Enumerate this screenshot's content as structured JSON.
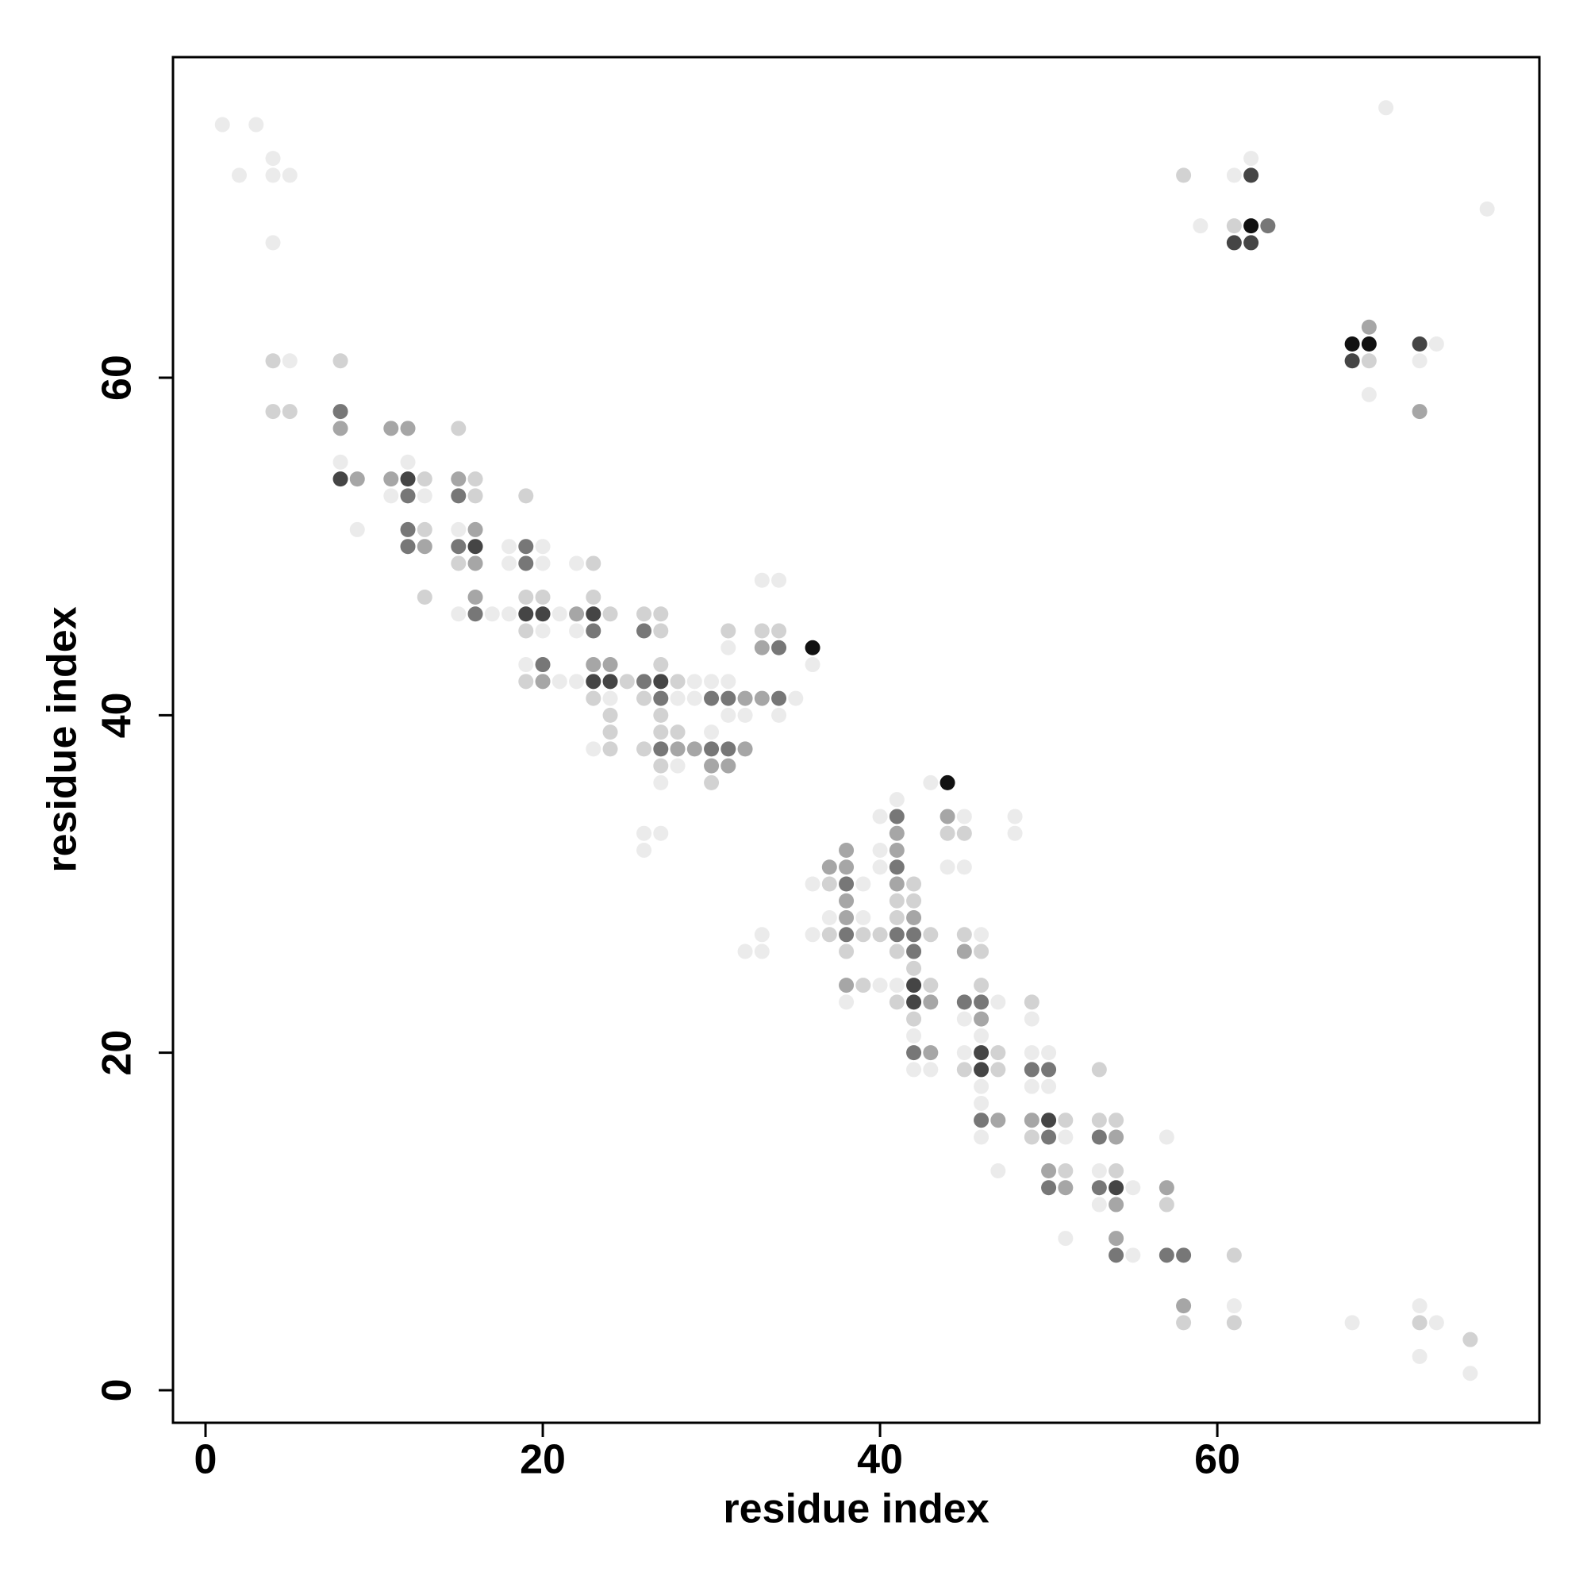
{
  "chart_data": {
    "type": "scatter",
    "x_label": "residue index",
    "y_label": "residue index",
    "xlim": [
      -1.93,
      79.1
    ],
    "ylim": [
      -1.93,
      79.0
    ],
    "xticks": [
      0,
      20,
      40,
      60
    ],
    "yticks": [
      0,
      20,
      40,
      60
    ],
    "grid": false,
    "series": [
      {
        "color": "#ebebeb",
        "x": [
          1,
          3,
          2,
          4,
          4,
          5,
          4,
          5,
          8,
          9,
          11,
          13,
          12,
          15,
          15,
          17,
          18,
          20,
          18,
          20,
          18,
          21,
          20,
          19,
          21,
          22,
          22,
          22,
          24,
          23,
          28,
          28,
          27,
          26,
          27,
          26,
          29,
          30,
          31,
          29,
          35,
          31,
          32,
          34,
          30,
          31,
          33,
          34,
          36,
          32,
          33,
          33,
          43,
          41,
          40,
          45,
          48,
          48,
          40,
          40,
          44,
          45,
          36,
          39,
          37,
          39,
          36,
          46,
          40,
          41,
          38,
          42,
          42,
          43,
          47,
          45,
          46,
          45,
          46,
          46,
          46,
          47,
          49,
          49,
          50,
          49,
          50,
          51,
          51,
          53,
          55,
          53,
          55,
          57,
          61,
          68,
          72,
          73,
          72,
          75,
          70,
          61,
          62,
          59,
          76,
          69,
          73,
          72
        ],
        "values": [
          75,
          75,
          72,
          73,
          72,
          72,
          68,
          61,
          55,
          51,
          53,
          53,
          55,
          51,
          46,
          46,
          50,
          50,
          49,
          49,
          46,
          46,
          45,
          43,
          42,
          49,
          45,
          42,
          41,
          38,
          41,
          37,
          36,
          33,
          33,
          32,
          42,
          42,
          42,
          41,
          41,
          40,
          40,
          40,
          39,
          44,
          48,
          48,
          43,
          26,
          26,
          27,
          36,
          35,
          34,
          34,
          34,
          33,
          32,
          31,
          31,
          31,
          30,
          30,
          28,
          28,
          27,
          27,
          24,
          24,
          23,
          21,
          19,
          19,
          23,
          22,
          21,
          20,
          18,
          17,
          15,
          13,
          22,
          20,
          20,
          18,
          18,
          15,
          9,
          13,
          12,
          11,
          8,
          15,
          5,
          4,
          5,
          4,
          2,
          1,
          76,
          72,
          73,
          69,
          70,
          59,
          62,
          61
        ]
      },
      {
        "color": "#d2d2d2",
        "x": [
          4,
          4,
          5,
          8,
          13,
          13,
          13,
          15,
          16,
          16,
          15,
          19,
          19,
          20,
          19,
          19,
          23,
          23,
          24,
          23,
          24,
          24,
          24,
          25,
          26,
          27,
          27,
          28,
          27,
          26,
          27,
          27,
          28,
          26,
          27,
          30,
          31,
          33,
          34,
          44,
          45,
          37,
          42,
          41,
          42,
          41,
          37,
          39,
          40,
          43,
          38,
          41,
          45,
          46,
          42,
          39,
          43,
          41,
          42,
          46,
          47,
          45,
          47,
          49,
          49,
          51,
          51,
          53,
          53,
          54,
          54,
          57,
          58,
          61,
          61,
          72,
          75,
          58,
          61,
          69
        ],
        "values": [
          61,
          58,
          58,
          61,
          54,
          51,
          47,
          57,
          54,
          53,
          49,
          53,
          47,
          47,
          45,
          42,
          49,
          47,
          46,
          41,
          40,
          39,
          38,
          42,
          46,
          46,
          45,
          42,
          43,
          41,
          40,
          39,
          39,
          38,
          37,
          36,
          45,
          45,
          45,
          33,
          33,
          30,
          30,
          29,
          29,
          28,
          27,
          27,
          27,
          27,
          26,
          26,
          27,
          26,
          25,
          24,
          24,
          23,
          22,
          24,
          20,
          19,
          19,
          23,
          15,
          16,
          13,
          19,
          16,
          16,
          13,
          11,
          4,
          8,
          4,
          4,
          3,
          72,
          69,
          61
        ]
      },
      {
        "color": "#a6a6a6",
        "x": [
          8,
          9,
          11,
          12,
          11,
          13,
          15,
          16,
          16,
          16,
          20,
          22,
          23,
          24,
          28,
          29,
          32,
          33,
          32,
          30,
          31,
          33,
          44,
          41,
          38,
          41,
          37,
          38,
          41,
          38,
          38,
          42,
          45,
          38,
          43,
          43,
          46,
          47,
          49,
          51,
          50,
          54,
          54,
          54,
          57,
          58,
          69,
          72
        ],
        "values": [
          57,
          54,
          57,
          57,
          54,
          50,
          54,
          51,
          49,
          47,
          42,
          46,
          43,
          43,
          38,
          38,
          41,
          41,
          38,
          37,
          37,
          44,
          34,
          33,
          32,
          32,
          31,
          31,
          30,
          29,
          28,
          28,
          26,
          24,
          23,
          20,
          22,
          16,
          16,
          12,
          13,
          15,
          11,
          9,
          12,
          5,
          63,
          58
        ]
      },
      {
        "color": "#777777",
        "x": [
          8,
          12,
          12,
          12,
          15,
          15,
          16,
          19,
          19,
          20,
          23,
          26,
          26,
          27,
          27,
          30,
          31,
          34,
          30,
          31,
          34,
          41,
          41,
          38,
          38,
          41,
          42,
          42,
          42,
          45,
          46,
          46,
          49,
          50,
          50,
          50,
          53,
          53,
          54,
          57,
          58,
          63
        ],
        "values": [
          58,
          53,
          51,
          50,
          53,
          50,
          46,
          50,
          49,
          43,
          45,
          45,
          42,
          41,
          38,
          41,
          41,
          41,
          38,
          38,
          44,
          34,
          31,
          30,
          27,
          27,
          27,
          26,
          20,
          23,
          23,
          16,
          19,
          19,
          15,
          12,
          15,
          12,
          8,
          8,
          8,
          69
        ]
      },
      {
        "color": "#454545",
        "x": [
          8,
          12,
          16,
          19,
          20,
          23,
          23,
          24,
          27,
          42,
          42,
          46,
          46,
          50,
          54,
          62,
          61,
          62,
          68,
          72
        ],
        "values": [
          54,
          54,
          50,
          46,
          46,
          46,
          42,
          42,
          42,
          24,
          23,
          20,
          19,
          16,
          12,
          72,
          68,
          68,
          61,
          62
        ]
      },
      {
        "color": "#111111",
        "x": [
          36,
          44,
          62,
          68,
          69
        ],
        "values": [
          44,
          36,
          69,
          62,
          62
        ]
      }
    ]
  }
}
